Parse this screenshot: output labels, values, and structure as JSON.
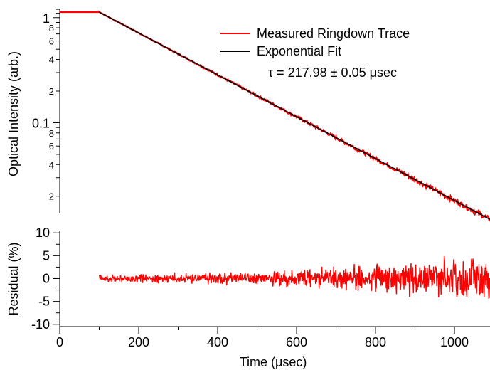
{
  "chart_data": [
    {
      "type": "line",
      "panel": "top",
      "ylabel": "Optical Intensity (arb.)",
      "yscale": "log",
      "ylim": [
        0.0137,
        1.22
      ],
      "xlim": [
        0,
        1090
      ],
      "major_tick_labels": [
        "1",
        "0.1"
      ],
      "minor_tick_labels": [
        "8",
        "6",
        "4",
        "2",
        "8",
        "6",
        "4",
        "2"
      ],
      "legend": {
        "placement": "top-right",
        "entries": [
          {
            "label": "Measured Ringdown Trace",
            "color": "#ff0000"
          },
          {
            "label": "Exponential Fit",
            "color": "#000000"
          }
        ]
      },
      "annotation": "τ = 217.98 ± 0.05 μsec",
      "series": [
        {
          "name": "Measured Ringdown Trace",
          "color": "#ff0000",
          "x": [
            0,
            100,
            1090
          ],
          "y": [
            1.13,
            1.13,
            0.0151
          ]
        },
        {
          "name": "Exponential Fit",
          "color": "#000000",
          "x": [
            100,
            1090
          ],
          "y": [
            1.13,
            0.0151
          ]
        }
      ],
      "tau_usec": 217.98
    },
    {
      "type": "line",
      "panel": "bottom",
      "ylabel": "Residual (%)",
      "xlabel": "Time (μsec)",
      "xlim": [
        0,
        1090
      ],
      "ylim": [
        -10.5,
        10.5
      ],
      "x_tick_labels": [
        "0",
        "200",
        "400",
        "600",
        "800",
        "1000"
      ],
      "y_tick_labels": [
        "10",
        "5",
        "0",
        "-5",
        "-10"
      ],
      "series": [
        {
          "name": "Residual",
          "color": "#ff0000",
          "x_start": 100,
          "x_end": 1090,
          "amplitude_envelope": [
            [
              100,
              0.6
            ],
            [
              400,
              1.0
            ],
            [
              600,
              1.5
            ],
            [
              800,
              2.4
            ],
            [
              1000,
              3.6
            ],
            [
              1090,
              5.5
            ]
          ]
        }
      ]
    }
  ],
  "colors": {
    "measured": "#ff0000",
    "fit": "#000000"
  }
}
